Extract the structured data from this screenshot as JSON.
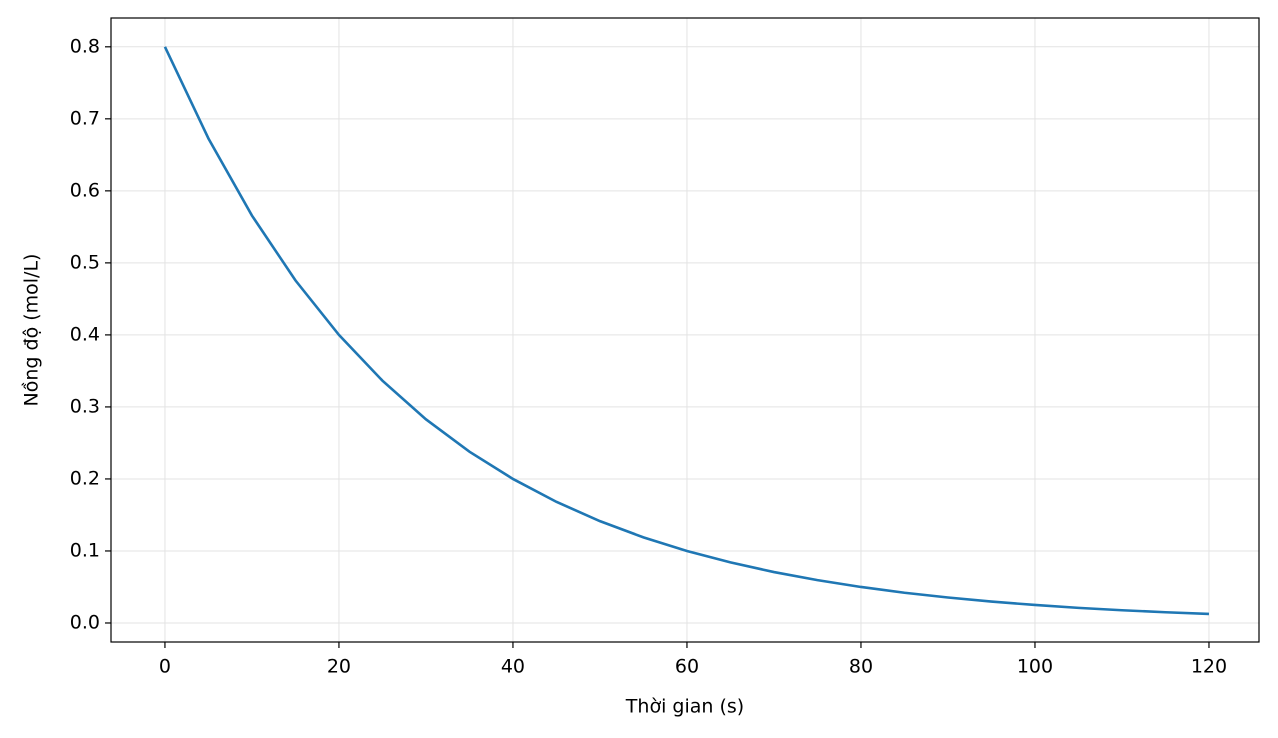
{
  "chart_data": {
    "type": "line",
    "xlabel": "Thời gian (s)",
    "ylabel": "Nồng độ (mol/L)",
    "x": [
      0,
      5,
      10,
      15,
      20,
      25,
      30,
      35,
      40,
      45,
      50,
      55,
      60,
      65,
      70,
      75,
      80,
      85,
      90,
      95,
      100,
      105,
      110,
      115,
      120
    ],
    "series": [
      {
        "color": "#1f77b4",
        "values": [
          0.8,
          0.6727,
          0.5657,
          0.4757,
          0.4,
          0.3364,
          0.2828,
          0.2378,
          0.2,
          0.1682,
          0.1414,
          0.1189,
          0.1,
          0.0841,
          0.0707,
          0.0595,
          0.05,
          0.042,
          0.0354,
          0.0297,
          0.025,
          0.021,
          0.0177,
          0.0149,
          0.0125
        ]
      }
    ],
    "xlim": [
      -6.2,
      125.75
    ],
    "ylim": [
      -0.0264,
      0.84
    ],
    "xticks": [
      0,
      20,
      40,
      60,
      80,
      100,
      120
    ],
    "yticks": [
      {
        "value": 0,
        "label": "0.0"
      },
      0.1,
      0.2,
      0.3,
      0.4,
      0.5,
      0.6,
      0.7,
      0.8
    ],
    "grid": true
  }
}
